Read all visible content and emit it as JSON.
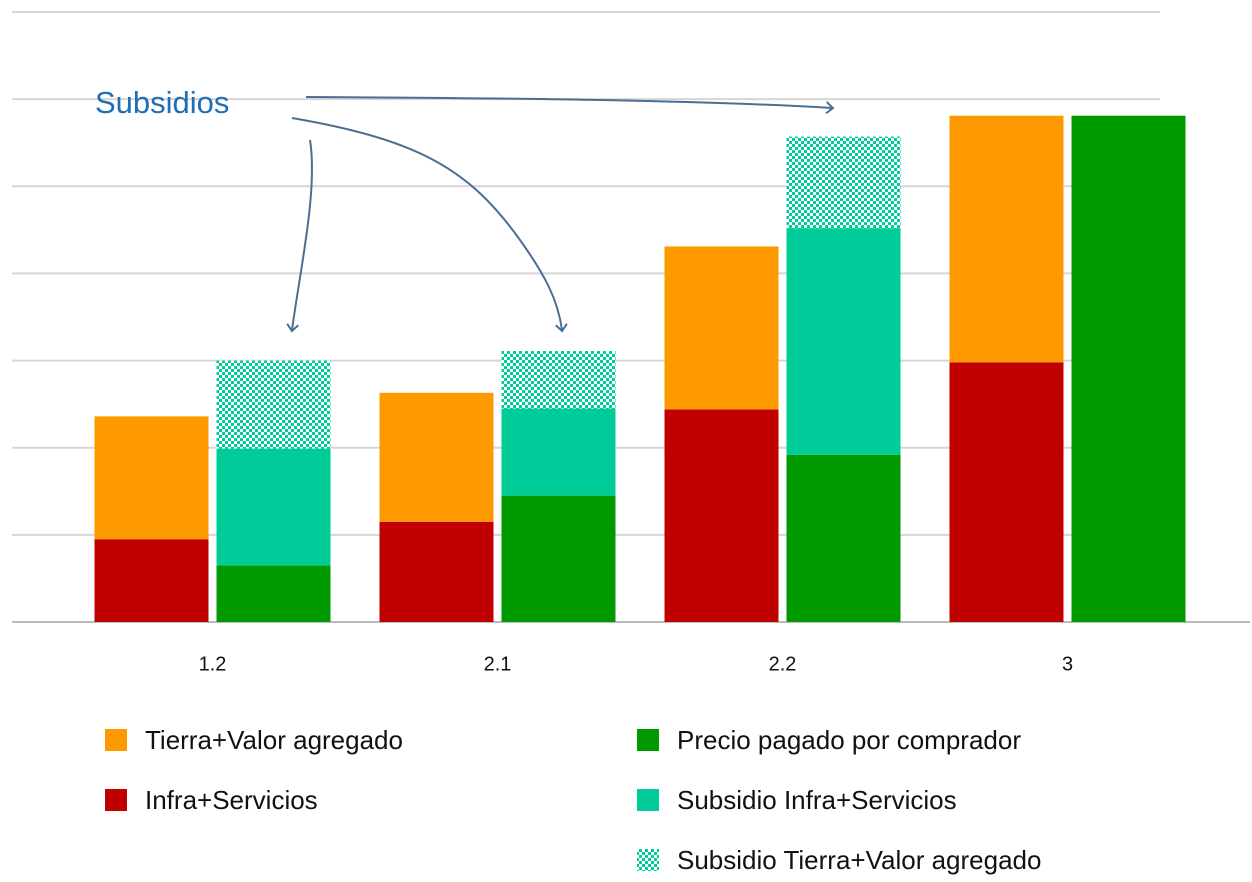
{
  "chart_data": {
    "type": "bar",
    "annotation": "Subsidios",
    "categories": [
      "1.2",
      "2.1",
      "2.2",
      "3"
    ],
    "ylim": [
      0,
      7
    ],
    "yticks": [
      0,
      1,
      2,
      3,
      4,
      5,
      6,
      7
    ],
    "grid": true,
    "series": [
      {
        "name": "Infra+Servicios",
        "color": "#c00000",
        "stack": 0,
        "values": [
          0.95,
          1.15,
          2.44,
          2.98
        ]
      },
      {
        "name": "Tierra+Valor agregado",
        "color": "#ff9900",
        "stack": 0,
        "values": [
          1.41,
          1.48,
          1.87,
          2.83
        ]
      },
      {
        "name": "Precio pagado por comprador",
        "color": "#009900",
        "stack": 1,
        "values": [
          0.65,
          1.45,
          1.92,
          5.81
        ]
      },
      {
        "name": "Subsidio Infra+Servicios",
        "color": "#00cc99",
        "stack": 1,
        "values": [
          1.34,
          1.0,
          2.6,
          0
        ]
      },
      {
        "name": "Subsidio Tierra+Valor agregado",
        "color": "#00cc99",
        "stack": 1,
        "pattern": "checker",
        "values": [
          1.01,
          0.66,
          1.05,
          0
        ]
      }
    ]
  }
}
